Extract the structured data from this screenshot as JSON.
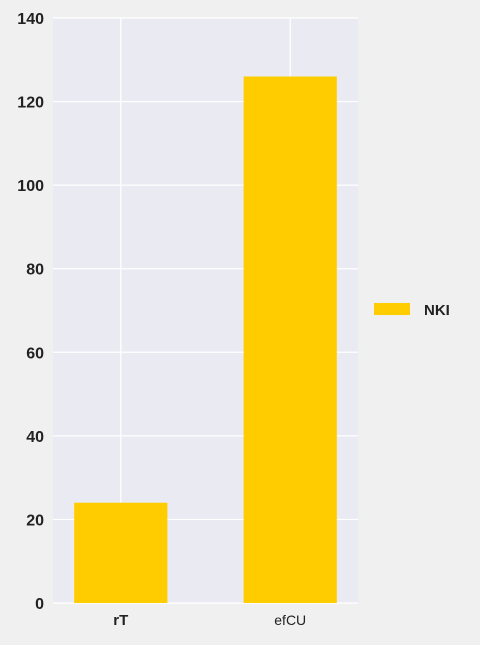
{
  "chart_data": {
    "type": "bar",
    "categories": [
      "rT",
      "efCU"
    ],
    "series": [
      {
        "name": "NKI",
        "values": [
          24,
          126
        ],
        "color": "#ffcc00"
      }
    ],
    "title": "",
    "xlabel": "",
    "ylabel": "",
    "ylim": [
      0,
      140
    ],
    "yticks": [
      "0",
      "20",
      "40",
      "60",
      "80",
      "100",
      "120",
      "140"
    ],
    "grid": true,
    "legend_position": "right",
    "plot_background": "#eaeaf2",
    "page_background": "#f0f0f0",
    "grid_color": "#ffffff"
  }
}
